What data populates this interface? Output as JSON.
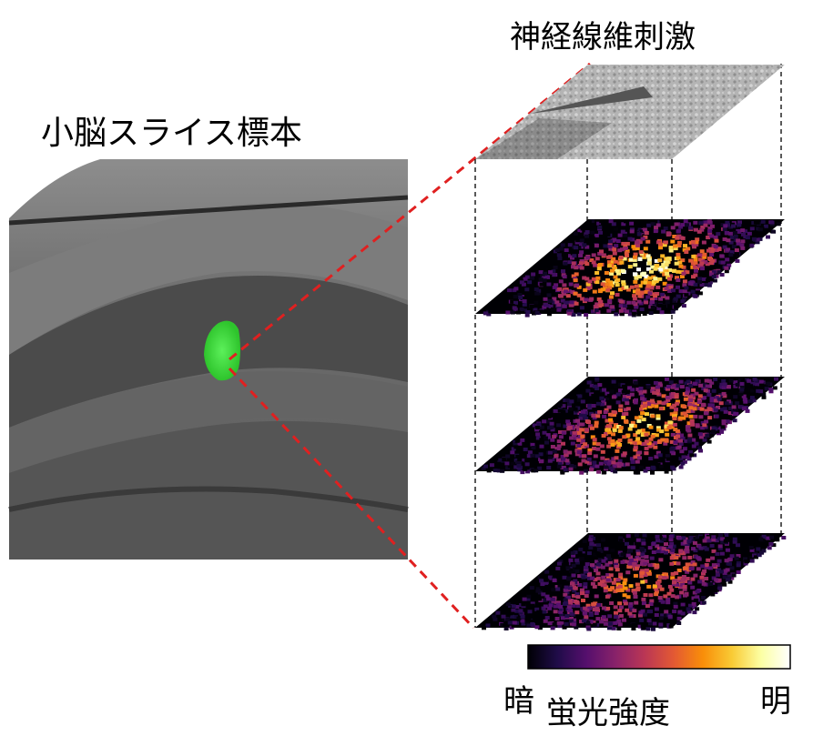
{
  "labels": {
    "slice_title": "小脳スライス標本",
    "stim_title": "神経線維刺激",
    "colorbar_dark": "暗",
    "colorbar_bright": "明",
    "colorbar_title": "蛍光強度"
  },
  "colors": {
    "zoom_lines": "#e02020",
    "guide_lines": "#000000",
    "fluor_spot": "#3ddc3a",
    "colormap": [
      "#000004",
      "#1f0c48",
      "#550f6d",
      "#88226a",
      "#ba3655",
      "#e35933",
      "#f98e09",
      "#f9cb35",
      "#fcffa4",
      "#ffffff"
    ]
  },
  "panels": [
    {
      "kind": "brightfield"
    },
    {
      "kind": "fluorescence",
      "intensity": 1.0
    },
    {
      "kind": "fluorescence",
      "intensity": 0.82
    },
    {
      "kind": "fluorescence",
      "intensity": 0.62
    }
  ]
}
